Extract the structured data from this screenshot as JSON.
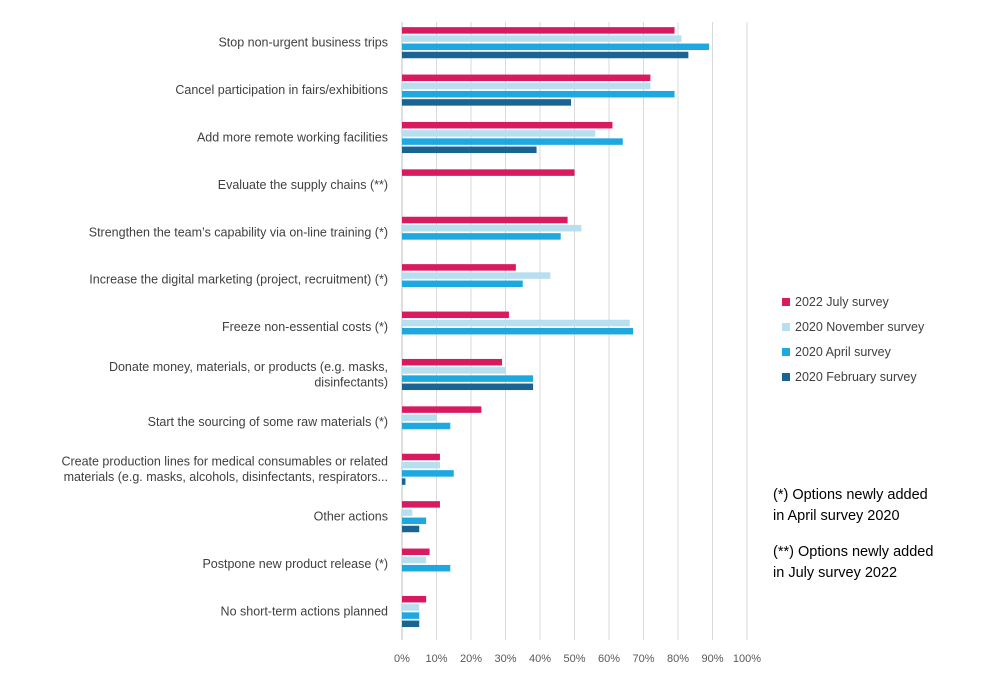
{
  "chart_data": {
    "type": "bar",
    "orientation": "horizontal",
    "categories": [
      [
        "Stop non-urgent business trips"
      ],
      [
        "Cancel participation in fairs/exhibitions"
      ],
      [
        "Add more remote working facilities"
      ],
      [
        "Evaluate the supply chains (**)"
      ],
      [
        "Strengthen the team’s capability via on-line training (*)"
      ],
      [
        "Increase the digital marketing (project, recruitment) (*)"
      ],
      [
        "Freeze non-essential costs (*)"
      ],
      [
        "Donate money, materials, or products (e.g. masks,",
        "disinfectants)"
      ],
      [
        "Start the sourcing of some raw materials (*)"
      ],
      [
        "Create production lines for medical consumables or related",
        "materials (e.g. masks, alcohols, disinfectants, respirators..."
      ],
      [
        "Other actions"
      ],
      [
        "Postpone new product release (*)"
      ],
      [
        "No short-term actions planned"
      ]
    ],
    "series": [
      {
        "name": "2022 July survey",
        "color": "#d81b60",
        "values": [
          79,
          72,
          61,
          50,
          48,
          33,
          31,
          29,
          23,
          11,
          11,
          8,
          7
        ]
      },
      {
        "name": "2020 November survey",
        "color": "#b7dfef",
        "values": [
          81,
          72,
          56,
          null,
          52,
          43,
          66,
          30,
          10,
          11,
          3,
          7,
          5
        ]
      },
      {
        "name": "2020 April survey",
        "color": "#1ea8e0",
        "values": [
          89,
          79,
          64,
          null,
          46,
          35,
          67,
          38,
          14,
          15,
          7,
          14,
          5
        ]
      },
      {
        "name": "2020 February survey",
        "color": "#1a6494",
        "values": [
          83,
          49,
          39,
          null,
          null,
          null,
          null,
          38,
          null,
          1,
          5,
          null,
          5
        ]
      }
    ],
    "x_ticks": [
      "0%",
      "10%",
      "20%",
      "30%",
      "40%",
      "50%",
      "60%",
      "70%",
      "80%",
      "90%",
      "100%"
    ],
    "xlim": [
      0,
      100
    ],
    "grid": "vertical",
    "legend_position": "right"
  },
  "notes": {
    "note1_line1": "(*) Options newly added",
    "note1_line2": "in April survey 2020",
    "note2_line1": "(**) Options newly added",
    "note2_line2": "in July survey 2022"
  }
}
